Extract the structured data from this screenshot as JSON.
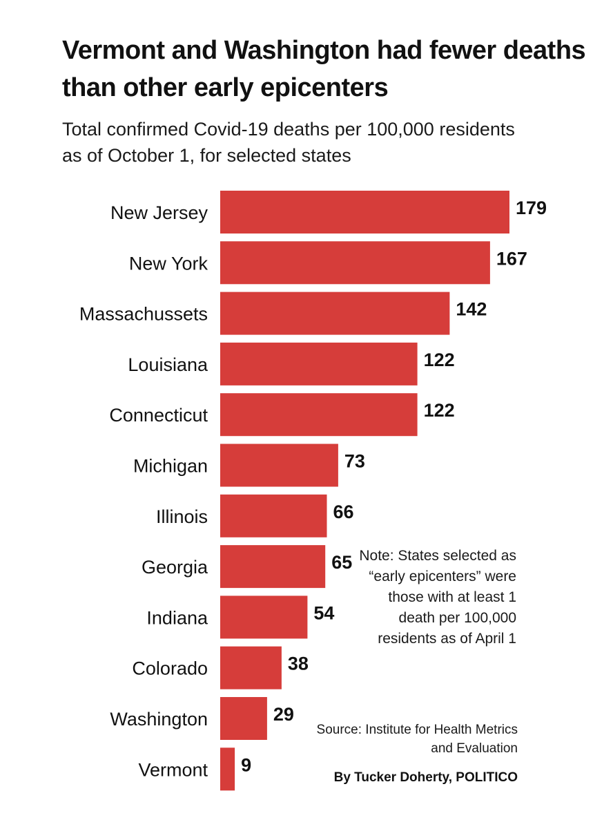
{
  "header": {
    "title": "Vermont and Washington had fewer deaths than other early epicenters",
    "subtitle": "Total confirmed Covid-19 deaths per 100,000 residents as of October 1, for selected states"
  },
  "notes": {
    "note": "Note: States selected as “early epicenters” were those with at least 1 death per 100,000 residents as of April 1",
    "source": "Source: Institute for Health Metrics and Evaluation",
    "byline": "By Tucker Doherty, POLITICO"
  },
  "colors": {
    "bar": "#d63d3a",
    "text": "#111111"
  },
  "chart_data": {
    "type": "bar",
    "orientation": "horizontal",
    "title": "Vermont and Washington had fewer deaths than other early epicenters",
    "subtitle": "Total confirmed Covid-19 deaths per 100,000 residents as of October 1, for selected states",
    "categories": [
      "New Jersey",
      "New York",
      "Massachussets",
      "Louisiana",
      "Connecticut",
      "Michigan",
      "Illinois",
      "Georgia",
      "Indiana",
      "Colorado",
      "Washington",
      "Vermont"
    ],
    "values": [
      179,
      167,
      142,
      122,
      122,
      73,
      66,
      65,
      54,
      38,
      29,
      9
    ],
    "data_labels": [
      "179",
      "167",
      "142",
      "122",
      "122",
      "73",
      "66",
      "65",
      "54",
      "38",
      "29",
      "9"
    ],
    "xlabel": "",
    "ylabel": "",
    "xlim": [
      0,
      179
    ],
    "grid": false,
    "legend": "none"
  }
}
